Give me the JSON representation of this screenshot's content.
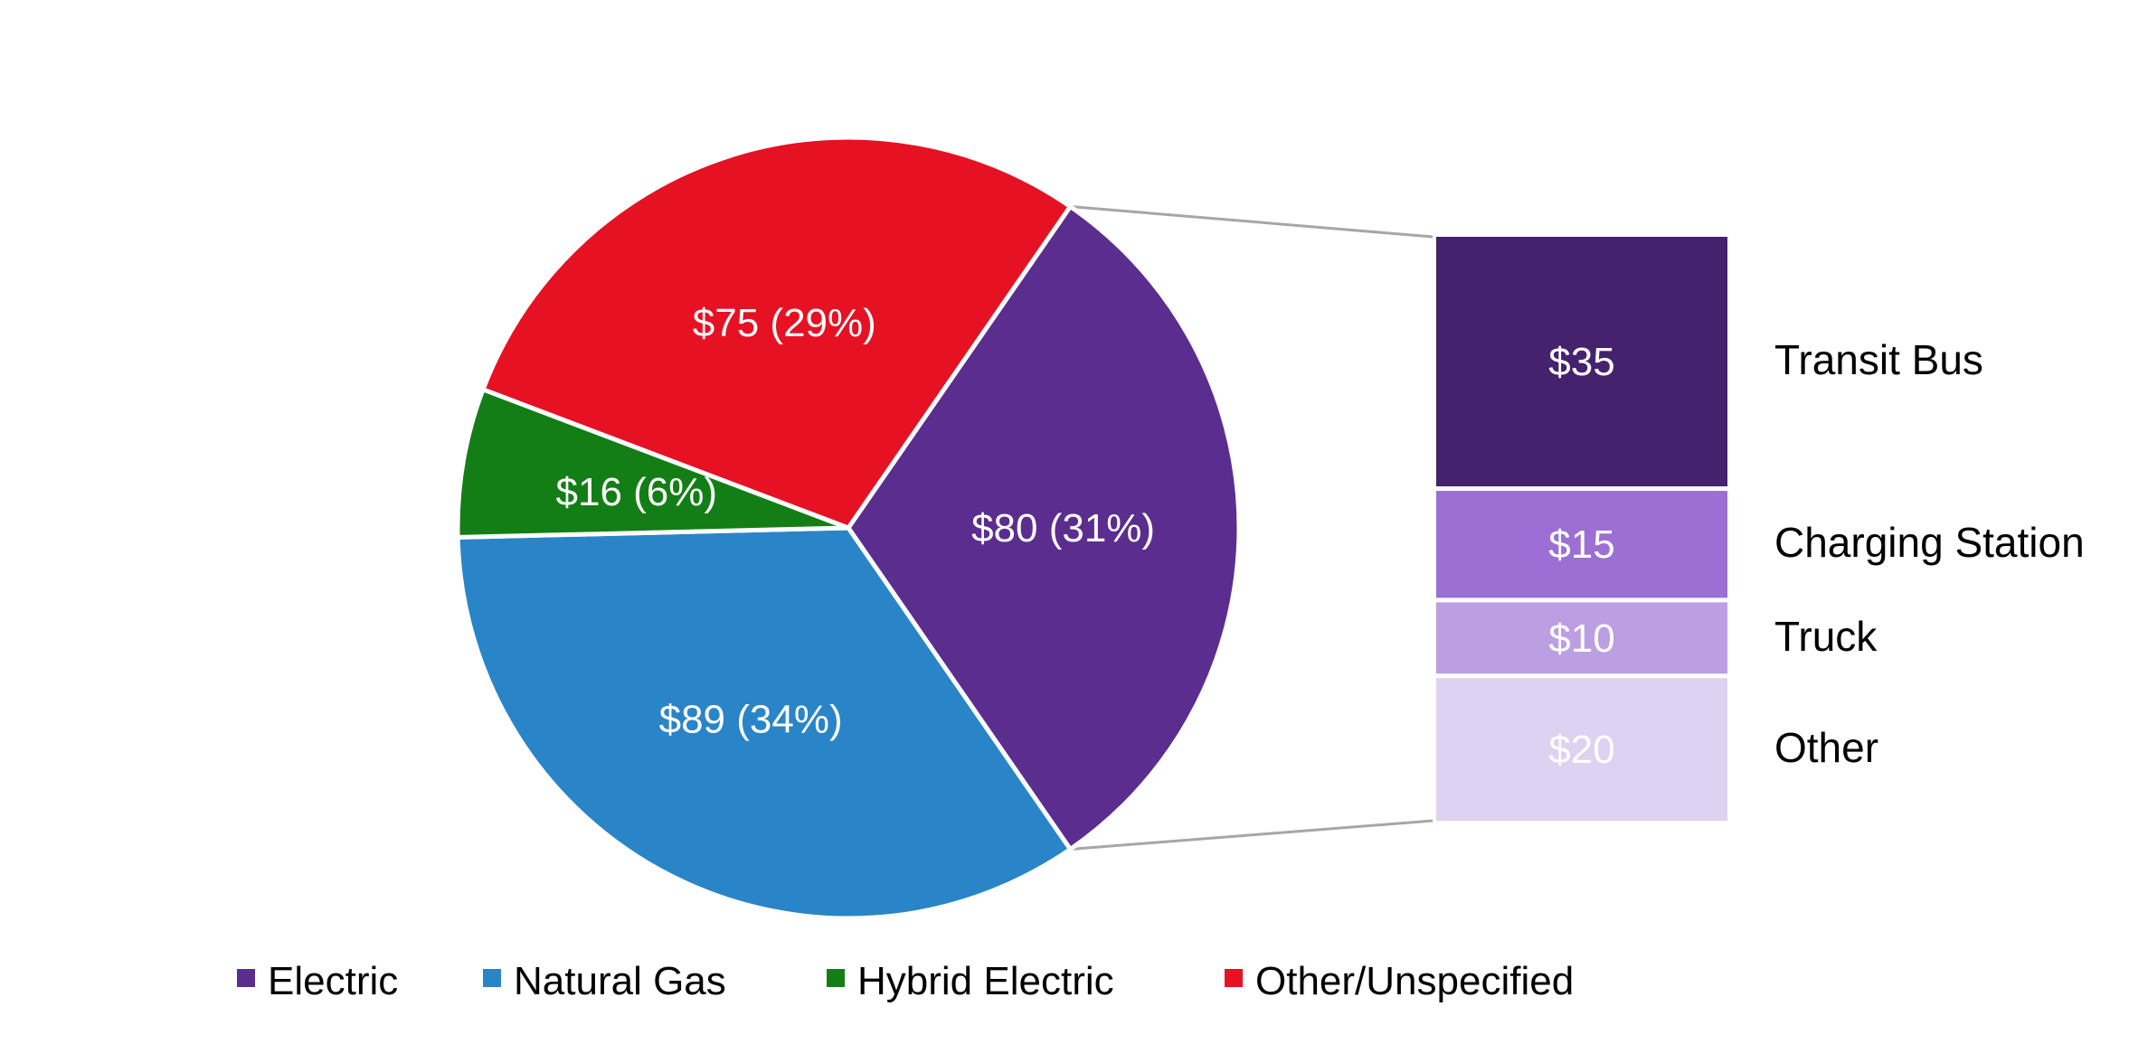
{
  "chart_data": {
    "type": "pie",
    "subtype": "bar-of-pie",
    "currency_prefix": "$",
    "slices": [
      {
        "name": "Electric",
        "value": 80,
        "label": "$80 (31%)",
        "color": "#5B2D8E"
      },
      {
        "name": "Natural Gas",
        "value": 89,
        "label": "$89 (34%)",
        "color": "#2985C7"
      },
      {
        "name": "Hybrid Electric",
        "value": 16,
        "label": "$16 (6%)",
        "color": "#137E16"
      },
      {
        "name": "Other/Unspecified",
        "value": 75,
        "label": "$75 (29%)",
        "color": "#E61123"
      }
    ],
    "breakdown_of": "Electric",
    "breakdown": [
      {
        "name": "Transit Bus",
        "value": 35,
        "label": "$35",
        "color": "#45216E",
        "text_color": "#ffffff"
      },
      {
        "name": "Charging Station",
        "value": 15,
        "label": "$15",
        "color": "#9B6FD3",
        "text_color": "#ffffff"
      },
      {
        "name": "Truck",
        "value": 10,
        "label": "$10",
        "color": "#BC9EE2",
        "text_color": "#ffffff"
      },
      {
        "name": "Other",
        "value": 20,
        "label": "$20",
        "color": "#DFD1F1",
        "text_color": "#ffffff"
      }
    ],
    "legend": {
      "placement": "bottom",
      "items": [
        "Electric",
        "Natural Gas",
        "Hybrid Electric",
        "Other/Unspecified"
      ]
    }
  }
}
